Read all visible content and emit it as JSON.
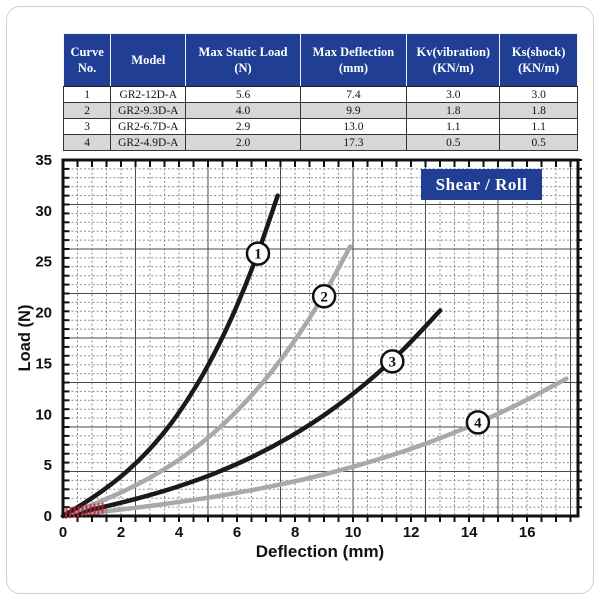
{
  "table": {
    "headers": [
      {
        "line1": "Curve",
        "line2": "No."
      },
      {
        "line1": "Model",
        "line2": ""
      },
      {
        "line1": "Max Static Load",
        "line2": "(N)"
      },
      {
        "line1": "Max Deflection",
        "line2": "(mm)"
      },
      {
        "line1": "Kv(vibration)",
        "line2": "(KN/m)"
      },
      {
        "line1": "Ks(shock)",
        "line2": "(KN/m)"
      }
    ],
    "rows": [
      [
        "1",
        "GR2-12D-A",
        "5.6",
        "7.4",
        "3.0",
        "3.0"
      ],
      [
        "2",
        "GR2-9.3D-A",
        "4.0",
        "9.9",
        "1.8",
        "1.8"
      ],
      [
        "3",
        "GR2-6.7D-A",
        "2.9",
        "13.0",
        "1.1",
        "1.1"
      ],
      [
        "4",
        "GR2-4.9D-A",
        "2.0",
        "17.3",
        "0.5",
        "0.5"
      ]
    ]
  },
  "chart": {
    "badge": "Shear / Roll",
    "xlabel": "Deflection (mm)",
    "ylabel": "Load (N)",
    "x_ticks": [
      "0",
      "2",
      "4",
      "6",
      "8",
      "10",
      "12",
      "14",
      "16"
    ],
    "y_ticks": [
      "0",
      "5",
      "10",
      "15",
      "20",
      "25",
      "30",
      "35"
    ]
  },
  "colors": {
    "header_bg": "#203f94",
    "badge_bg": "#203f94",
    "row_alt": "#d7d7d7",
    "curve_black": "#1a1a1a",
    "curve_gray": "#a9a9a9",
    "grid_minor": "#8a8a8a",
    "grid_major": "#4a4a4a",
    "plot_border": "#111111",
    "watermark_red": "#c02030"
  },
  "chart_data": {
    "type": "line",
    "title": "Shear / Roll",
    "xlabel": "Deflection (mm)",
    "ylabel": "Load (N)",
    "xlim": [
      0,
      17.75
    ],
    "ylim": [
      0,
      35
    ],
    "grid": "graph-paper, dashed minors with solid majors",
    "legend_position": "none (curves numbered with circled labels)",
    "series": [
      {
        "name": "1",
        "model": "GR2-12D-A",
        "color": "#1a1a1a",
        "points": [
          [
            0,
            0
          ],
          [
            0.74,
            1.29
          ],
          [
            1.48,
            2.73
          ],
          [
            2.22,
            4.43
          ],
          [
            2.96,
            6.49
          ],
          [
            3.7,
            9.01
          ],
          [
            4.44,
            12.09
          ],
          [
            5.18,
            15.78
          ],
          [
            5.92,
            20.19
          ],
          [
            6.66,
            25.41
          ],
          [
            7.4,
            31.5
          ]
        ]
      },
      {
        "name": "2",
        "model": "GR2-9.3D-A",
        "color": "#a9a9a9",
        "points": [
          [
            0,
            0
          ],
          [
            0.99,
            1.09
          ],
          [
            1.98,
            2.29
          ],
          [
            2.97,
            3.73
          ],
          [
            3.96,
            5.46
          ],
          [
            4.95,
            7.58
          ],
          [
            5.94,
            10.17
          ],
          [
            6.93,
            13.28
          ],
          [
            7.92,
            16.99
          ],
          [
            8.91,
            21.37
          ],
          [
            9.9,
            26.5
          ]
        ]
      },
      {
        "name": "3",
        "model": "GR2-6.7D-A",
        "color": "#1a1a1a",
        "points": [
          [
            0,
            0
          ],
          [
            1.3,
            0.83
          ],
          [
            2.6,
            1.75
          ],
          [
            3.9,
            2.84
          ],
          [
            5.2,
            4.16
          ],
          [
            6.5,
            5.78
          ],
          [
            7.8,
            7.75
          ],
          [
            9.1,
            10.12
          ],
          [
            10.4,
            12.95
          ],
          [
            11.7,
            16.29
          ],
          [
            13.0,
            20.2
          ]
        ]
      },
      {
        "name": "4",
        "model": "GR2-4.9D-A",
        "color": "#a9a9a9",
        "points": [
          [
            0,
            0
          ],
          [
            1.74,
            0.55
          ],
          [
            3.47,
            1.17
          ],
          [
            5.21,
            1.9
          ],
          [
            6.94,
            2.78
          ],
          [
            8.68,
            3.86
          ],
          [
            10.41,
            5.18
          ],
          [
            12.15,
            6.76
          ],
          [
            13.88,
            8.66
          ],
          [
            15.62,
            10.89
          ],
          [
            17.35,
            13.5
          ]
        ]
      }
    ],
    "labels": [
      {
        "text": "1",
        "x": 6.72,
        "y": 25.8
      },
      {
        "text": "2",
        "x": 9.0,
        "y": 21.6
      },
      {
        "text": "3",
        "x": 11.35,
        "y": 15.2
      },
      {
        "text": "4",
        "x": 14.3,
        "y": 9.2
      }
    ]
  }
}
